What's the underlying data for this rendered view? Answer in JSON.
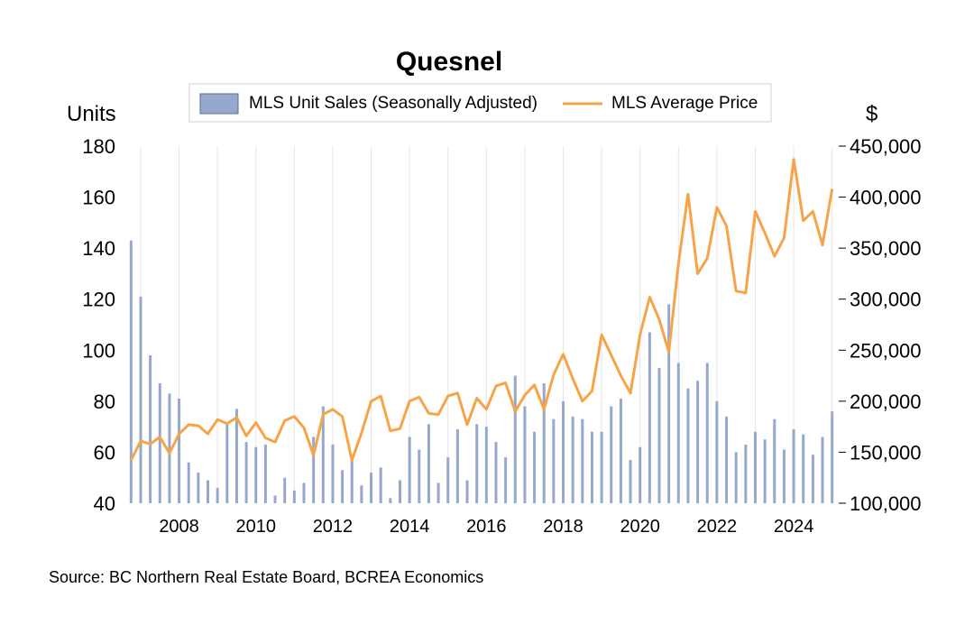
{
  "chart_data": {
    "type": "bar+line",
    "title": "Quesnel",
    "left_axis_unit": "Units",
    "right_axis_unit": "$",
    "ylim_left": [
      40,
      180
    ],
    "ylim_right": [
      100000,
      450000
    ],
    "left_ticks": [
      "40",
      "60",
      "80",
      "100",
      "120",
      "140",
      "160",
      "180"
    ],
    "right_ticks": [
      "100,000",
      "150,000",
      "200,000",
      "250,000",
      "300,000",
      "350,000",
      "400,000",
      "450,000"
    ],
    "x_ticks": [
      "2008",
      "2010",
      "2012",
      "2014",
      "2016",
      "2018",
      "2020",
      "2022",
      "2024"
    ],
    "x_range": [
      2006.625,
      2025.125
    ],
    "grid": "vertical",
    "legend_position": "top-center",
    "series": [
      {
        "name": "MLS Unit Sales (Seasonally Adjusted)",
        "kind": "bar",
        "color": "#96a9cc",
        "x": [
          2006.75,
          2007.0,
          2007.25,
          2007.5,
          2007.75,
          2008.0,
          2008.25,
          2008.5,
          2008.75,
          2009.0,
          2009.25,
          2009.5,
          2009.75,
          2010.0,
          2010.25,
          2010.5,
          2010.75,
          2011.0,
          2011.25,
          2011.5,
          2011.75,
          2012.0,
          2012.25,
          2012.5,
          2012.75,
          2013.0,
          2013.25,
          2013.5,
          2013.75,
          2014.0,
          2014.25,
          2014.5,
          2014.75,
          2015.0,
          2015.25,
          2015.5,
          2015.75,
          2016.0,
          2016.25,
          2016.5,
          2016.75,
          2017.0,
          2017.25,
          2017.5,
          2017.75,
          2018.0,
          2018.25,
          2018.5,
          2018.75,
          2019.0,
          2019.25,
          2019.5,
          2019.75,
          2020.0,
          2020.25,
          2020.5,
          2020.75,
          2021.0,
          2021.25,
          2021.5,
          2021.75,
          2022.0,
          2022.25,
          2022.5,
          2022.75,
          2023.0,
          2023.25,
          2023.5,
          2023.75,
          2024.0,
          2024.25,
          2024.5,
          2024.75,
          2025.0
        ],
        "values": [
          143,
          121,
          98,
          87,
          83,
          81,
          56,
          52,
          49,
          46,
          71,
          77,
          64,
          62,
          63,
          43,
          50,
          45,
          48,
          66,
          78,
          63,
          53,
          57,
          47,
          52,
          54,
          42,
          49,
          66,
          61,
          71,
          48,
          58,
          69,
          49,
          71,
          70,
          64,
          58,
          90,
          78,
          68,
          87,
          73,
          80,
          74,
          73,
          68,
          68,
          78,
          81,
          57,
          62,
          107,
          93,
          118,
          95,
          85,
          88,
          95,
          80,
          74,
          60,
          63,
          68,
          65,
          73,
          61,
          69,
          67,
          59,
          66,
          76
        ]
      },
      {
        "name": "MLS Average Price",
        "kind": "line",
        "color": "#f7a448",
        "x": [
          2006.75,
          2007.0,
          2007.25,
          2007.5,
          2007.75,
          2008.0,
          2008.25,
          2008.5,
          2008.75,
          2009.0,
          2009.25,
          2009.5,
          2009.75,
          2010.0,
          2010.25,
          2010.5,
          2010.75,
          2011.0,
          2011.25,
          2011.5,
          2011.75,
          2012.0,
          2012.25,
          2012.5,
          2012.75,
          2013.0,
          2013.25,
          2013.5,
          2013.75,
          2014.0,
          2014.25,
          2014.5,
          2014.75,
          2015.0,
          2015.25,
          2015.5,
          2015.75,
          2016.0,
          2016.25,
          2016.5,
          2016.75,
          2017.0,
          2017.25,
          2017.5,
          2017.75,
          2018.0,
          2018.25,
          2018.5,
          2018.75,
          2019.0,
          2019.25,
          2019.5,
          2019.75,
          2020.0,
          2020.25,
          2020.5,
          2020.75,
          2021.0,
          2021.25,
          2021.5,
          2021.75,
          2022.0,
          2022.25,
          2022.5,
          2022.75,
          2023.0,
          2023.25,
          2023.5,
          2023.75,
          2024.0,
          2024.25,
          2024.5,
          2024.75,
          2025.0
        ],
        "values": [
          142000,
          161000,
          158000,
          165000,
          149000,
          168000,
          177000,
          176000,
          168000,
          182000,
          178000,
          184000,
          166000,
          179000,
          164000,
          160000,
          181000,
          185000,
          174000,
          147000,
          187000,
          192000,
          185000,
          142000,
          169000,
          200000,
          205000,
          171000,
          173000,
          200000,
          204000,
          188000,
          187000,
          205000,
          208000,
          177000,
          203000,
          192000,
          215000,
          218000,
          190000,
          206000,
          216000,
          192000,
          226000,
          246000,
          222000,
          200000,
          210000,
          265000,
          245000,
          225000,
          208000,
          265000,
          302000,
          280000,
          248000,
          335000,
          403000,
          325000,
          340000,
          390000,
          372000,
          308000,
          306000,
          386000,
          365000,
          342000,
          360000,
          437000,
          377000,
          386000,
          353000,
          408000
        ]
      }
    ]
  },
  "footer": {
    "source": "Source:  BC Northern Real Estate Board, BCREA Economics"
  }
}
